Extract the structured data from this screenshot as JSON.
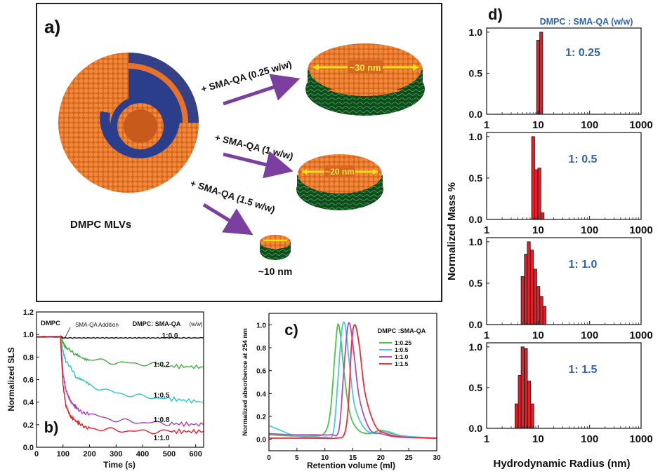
{
  "figure": {
    "panel_a": {
      "label": "a)",
      "vesicle_label": "DMPC MLVs",
      "arrows": [
        "+ SMA-QA (0.25 w/w)",
        "+ SMA-QA (1 w/w)",
        "+ SMA-QA (1.5 w/w)"
      ],
      "disc_sizes": [
        "~30 nm",
        "~20 nm",
        "~10 nm"
      ],
      "colors": {
        "lipid_head": "#e8722a",
        "lipid_tail": "#2b3e8c",
        "polymer": "#1f6b2f",
        "arrow": "#7b3fa0",
        "size_marker": "#f2e20a"
      }
    },
    "panel_b": {
      "label": "b)",
      "legend_title": "DMPC: SMA-QA",
      "legend_unit": "(w/w)",
      "annotations": {
        "start": "DMPC",
        "addition": "SMA-QA Addition"
      }
    },
    "panel_c": {
      "label": "c)",
      "legend_title": "DMPC :SMA-QA"
    },
    "panel_d": {
      "label": "d)",
      "header": "DMPC : SMA-QA (w/w)",
      "ylabel": "Normalized Mass %",
      "xlabel": "Hydrodynamic Radius (nm)"
    }
  },
  "chart_data": [
    {
      "id": "b",
      "type": "line",
      "title": "",
      "xlabel": "Time (s)",
      "ylabel": "Normalized SLS",
      "xlim": [
        0,
        630
      ],
      "ylim": [
        0.0,
        1.2
      ],
      "xticks": [
        "0",
        "100",
        "200",
        "300",
        "400",
        "500",
        "600"
      ],
      "yticks": [
        "0.0",
        "0.2",
        "0.4",
        "0.6",
        "0.8",
        "1.0",
        "1.2"
      ],
      "series": [
        {
          "name": "1:0.0",
          "color": "#111111",
          "x": [
            0,
            90,
            100,
            200,
            300,
            400,
            500,
            630
          ],
          "y": [
            0.98,
            0.98,
            0.97,
            0.97,
            0.97,
            0.97,
            0.97,
            0.97
          ]
        },
        {
          "name": "1:0.2",
          "color": "#3fae3a",
          "x": [
            0,
            90,
            100,
            110,
            150,
            200,
            300,
            400,
            500,
            630
          ],
          "y": [
            0.98,
            0.98,
            0.93,
            0.88,
            0.82,
            0.78,
            0.75,
            0.74,
            0.72,
            0.71
          ]
        },
        {
          "name": "1:0.5",
          "color": "#2ec4cc",
          "x": [
            0,
            90,
            100,
            110,
            150,
            200,
            300,
            400,
            500,
            630
          ],
          "y": [
            0.98,
            0.98,
            0.85,
            0.77,
            0.62,
            0.55,
            0.48,
            0.45,
            0.43,
            0.4
          ]
        },
        {
          "name": "1:0.8",
          "color": "#a73fb8",
          "x": [
            0,
            90,
            100,
            110,
            130,
            160,
            200,
            300,
            400,
            500,
            630
          ],
          "y": [
            0.98,
            0.98,
            0.65,
            0.52,
            0.4,
            0.33,
            0.29,
            0.24,
            0.22,
            0.21,
            0.2
          ]
        },
        {
          "name": "1:1.0",
          "color": "#e3202a",
          "x": [
            0,
            90,
            100,
            110,
            130,
            160,
            200,
            300,
            400,
            500,
            630
          ],
          "y": [
            0.98,
            0.98,
            0.55,
            0.38,
            0.27,
            0.21,
            0.17,
            0.15,
            0.14,
            0.14,
            0.14
          ]
        }
      ]
    },
    {
      "id": "c",
      "type": "line",
      "title": "",
      "xlabel": "Retention volume (ml)",
      "ylabel": "Normalized absorbence at 254 nm",
      "xlim": [
        0,
        30
      ],
      "ylim": [
        -0.1,
        1.1
      ],
      "xticks": [
        "0",
        "5",
        "10",
        "15",
        "20",
        "25",
        "30"
      ],
      "yticks": [
        "0.0",
        "0.2",
        "0.4",
        "0.6",
        "0.8",
        "1.0"
      ],
      "series": [
        {
          "name": "1:0.25",
          "color": "#4ec24a",
          "x": [
            0,
            4,
            8,
            10,
            11,
            11.8,
            12.3,
            12.8,
            13.5,
            14.5,
            16,
            18,
            20,
            22,
            25,
            30
          ],
          "y": [
            0.04,
            0.03,
            0.03,
            0.06,
            0.25,
            0.75,
            1.0,
            0.9,
            0.55,
            0.22,
            0.08,
            0.05,
            0.08,
            0.05,
            0.02,
            0.01
          ]
        },
        {
          "name": "1:0.5",
          "color": "#4fc5e8",
          "x": [
            0,
            2,
            4,
            6,
            8,
            10,
            11.5,
            12.3,
            13.0,
            13.6,
            14.3,
            15.3,
            17,
            19,
            21,
            24,
            30
          ],
          "y": [
            0.12,
            0.08,
            0.04,
            0.02,
            0.02,
            0.02,
            0.06,
            0.5,
            0.95,
            1.0,
            0.7,
            0.3,
            0.1,
            0.05,
            0.07,
            0.03,
            0.01
          ]
        },
        {
          "name": "1:1.0",
          "color": "#b04ec0",
          "x": [
            0,
            4,
            8,
            11,
            12.5,
            13.3,
            14.0,
            14.5,
            15.2,
            16.2,
            18,
            20,
            23,
            30
          ],
          "y": [
            0.05,
            0.04,
            0.04,
            0.04,
            0.08,
            0.55,
            0.95,
            1.0,
            0.75,
            0.35,
            0.09,
            0.05,
            0.02,
            0.01
          ]
        },
        {
          "name": "1:1.5",
          "color": "#e8313a",
          "x": [
            0,
            4,
            8,
            12,
            13.5,
            14.2,
            14.8,
            15.4,
            16.2,
            17.2,
            19,
            21,
            24,
            30
          ],
          "y": [
            0.01,
            0.01,
            0.01,
            0.01,
            0.05,
            0.3,
            0.85,
            1.0,
            0.8,
            0.4,
            0.12,
            0.05,
            0.02,
            0.01
          ]
        }
      ]
    },
    {
      "id": "d",
      "type": "bar",
      "xscale": "log",
      "xlim": [
        1,
        1000
      ],
      "ylim": [
        0.0,
        1.05
      ],
      "xticks": [
        "1",
        "10",
        "100",
        "1000"
      ],
      "yticks": [
        "0.0",
        "0.5",
        "1.0"
      ],
      "xlabel": "Hydrodynamic Radius (nm)",
      "ylabel": "Normalized Mass %",
      "bar_color": "#e3202a",
      "series": [
        {
          "name": "1: 0.25",
          "x": [
            10.0,
            11.5
          ],
          "values": [
            0.9,
            1.0
          ]
        },
        {
          "name": "1: 0.5",
          "x": [
            8.0,
            9.2,
            10.6,
            12.2
          ],
          "values": [
            1.0,
            0.6,
            0.62,
            0.08
          ]
        },
        {
          "name": "1: 1.0",
          "x": [
            5.0,
            5.8,
            6.6,
            7.6,
            8.8,
            10.1,
            11.6,
            13.3
          ],
          "values": [
            0.58,
            0.85,
            1.0,
            0.9,
            0.67,
            0.46,
            0.34,
            0.22
          ]
        },
        {
          "name": "1: 1.5",
          "x": [
            3.8,
            4.4,
            5.0,
            5.8,
            6.7,
            7.7
          ],
          "values": [
            0.3,
            0.65,
            1.0,
            0.98,
            0.58,
            0.3
          ]
        }
      ]
    }
  ]
}
